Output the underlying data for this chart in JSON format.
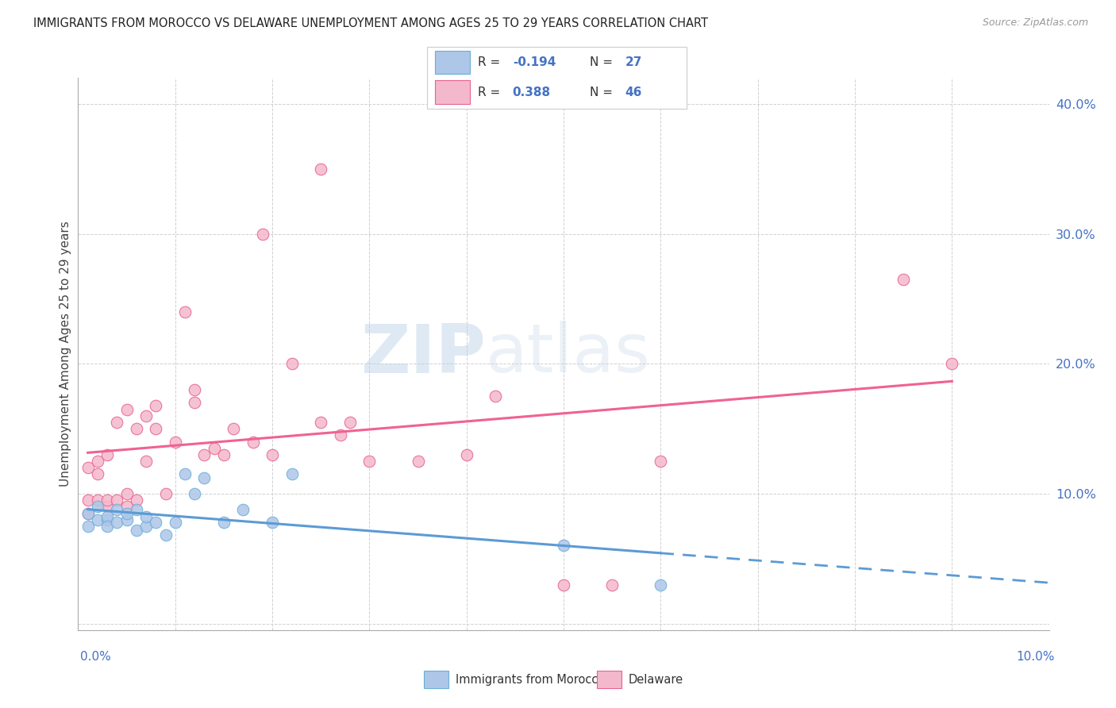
{
  "title": "IMMIGRANTS FROM MOROCCO VS DELAWARE UNEMPLOYMENT AMONG AGES 25 TO 29 YEARS CORRELATION CHART",
  "source": "Source: ZipAtlas.com",
  "ylabel": "Unemployment Among Ages 25 to 29 years",
  "xlim": [
    0.0,
    0.1
  ],
  "ylim": [
    -0.005,
    0.42
  ],
  "yticks": [
    0.0,
    0.1,
    0.2,
    0.3,
    0.4
  ],
  "ytick_labels": [
    "",
    "10.0%",
    "20.0%",
    "30.0%",
    "40.0%"
  ],
  "color_morocco": "#aec6e8",
  "color_morocco_edge": "#6aaed6",
  "color_delaware": "#f4b8cc",
  "color_delaware_edge": "#e8628a",
  "color_morocco_line": "#5b9bd5",
  "color_delaware_line": "#f06292",
  "morocco_x": [
    0.001,
    0.001,
    0.002,
    0.002,
    0.003,
    0.003,
    0.003,
    0.004,
    0.004,
    0.005,
    0.005,
    0.006,
    0.006,
    0.007,
    0.007,
    0.008,
    0.009,
    0.01,
    0.011,
    0.012,
    0.013,
    0.015,
    0.017,
    0.02,
    0.022,
    0.05,
    0.06
  ],
  "morocco_y": [
    0.075,
    0.085,
    0.08,
    0.09,
    0.08,
    0.082,
    0.075,
    0.078,
    0.088,
    0.08,
    0.085,
    0.072,
    0.088,
    0.075,
    0.082,
    0.078,
    0.068,
    0.078,
    0.115,
    0.1,
    0.112,
    0.078,
    0.088,
    0.078,
    0.115,
    0.06,
    0.03
  ],
  "delaware_x": [
    0.001,
    0.001,
    0.001,
    0.002,
    0.002,
    0.002,
    0.003,
    0.003,
    0.003,
    0.004,
    0.004,
    0.005,
    0.005,
    0.005,
    0.006,
    0.006,
    0.007,
    0.007,
    0.008,
    0.008,
    0.009,
    0.01,
    0.011,
    0.012,
    0.012,
    0.013,
    0.014,
    0.015,
    0.016,
    0.018,
    0.019,
    0.02,
    0.022,
    0.025,
    0.025,
    0.027,
    0.028,
    0.03,
    0.035,
    0.04,
    0.043,
    0.05,
    0.055,
    0.06,
    0.085,
    0.09
  ],
  "delaware_y": [
    0.085,
    0.095,
    0.12,
    0.095,
    0.115,
    0.125,
    0.09,
    0.095,
    0.13,
    0.095,
    0.155,
    0.09,
    0.1,
    0.165,
    0.095,
    0.15,
    0.125,
    0.16,
    0.15,
    0.168,
    0.1,
    0.14,
    0.24,
    0.17,
    0.18,
    0.13,
    0.135,
    0.13,
    0.15,
    0.14,
    0.3,
    0.13,
    0.2,
    0.155,
    0.35,
    0.145,
    0.155,
    0.125,
    0.125,
    0.13,
    0.175,
    0.03,
    0.03,
    0.125,
    0.265,
    0.2
  ],
  "morocco_line_x_start": 0.001,
  "morocco_line_x_solid_end": 0.06,
  "morocco_line_x_dash_end": 0.1,
  "delaware_line_x_start": 0.001,
  "delaware_line_x_end": 0.09,
  "watermark_zip": "ZIP",
  "watermark_atlas": "atlas",
  "legend_items": [
    {
      "color": "#aec6e8",
      "edge": "#6aaed6",
      "r_text": "R = ",
      "r_val": "-0.194",
      "n_text": "N = ",
      "n_val": "27"
    },
    {
      "color": "#f4b8cc",
      "edge": "#e8628a",
      "r_text": "R = ",
      "r_val": "0.388",
      "n_text": "N = ",
      "n_val": "46"
    }
  ],
  "bottom_legend": [
    {
      "color": "#aec6e8",
      "edge": "#6aaed6",
      "label": "Immigrants from Morocco"
    },
    {
      "color": "#f4b8cc",
      "edge": "#e8628a",
      "label": "Delaware"
    }
  ]
}
